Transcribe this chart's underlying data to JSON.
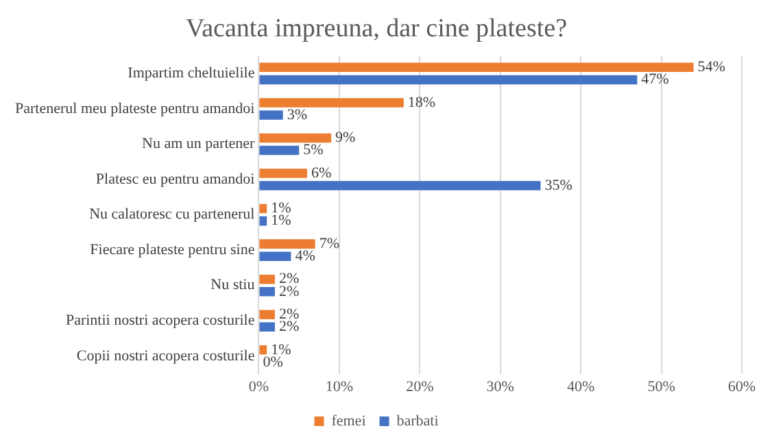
{
  "chart_data": {
    "type": "bar",
    "orientation": "horizontal",
    "title": "Vacanta impreuna, dar cine plateste?",
    "categories": [
      "Impartim cheltuielile",
      "Partenerul meu plateste pentru amandoi",
      "Nu am un partener",
      "Platesc eu pentru amandoi",
      "Nu calatoresc cu partenerul",
      "Fiecare plateste pentru sine",
      "Nu stiu",
      "Parintii nostri acopera costurile",
      "Copii nostri acopera costurile"
    ],
    "series": [
      {
        "name": "femei",
        "color": "#ed7d31",
        "values": [
          54,
          18,
          9,
          6,
          1,
          7,
          2,
          2,
          1
        ],
        "value_labels": [
          "54%",
          "18%",
          "9%",
          "6%",
          "1%",
          "7%",
          "2%",
          "2%",
          "1%"
        ]
      },
      {
        "name": "barbati",
        "color": "#4472c4",
        "values": [
          47,
          3,
          5,
          35,
          1,
          4,
          2,
          2,
          0
        ],
        "value_labels": [
          "47%",
          "3%",
          "5%",
          "35%",
          "1%",
          "4%",
          "2%",
          "2%",
          "0%"
        ]
      }
    ],
    "xlim": [
      0,
      60
    ],
    "xticks": [
      {
        "value": 0,
        "label": "0%"
      },
      {
        "value": 10,
        "label": "10%"
      },
      {
        "value": 20,
        "label": "20%"
      },
      {
        "value": 30,
        "label": "30%"
      },
      {
        "value": 40,
        "label": "40%"
      },
      {
        "value": 50,
        "label": "50%"
      },
      {
        "value": 60,
        "label": "60%"
      }
    ],
    "grid": "x",
    "legend": "bottom"
  }
}
